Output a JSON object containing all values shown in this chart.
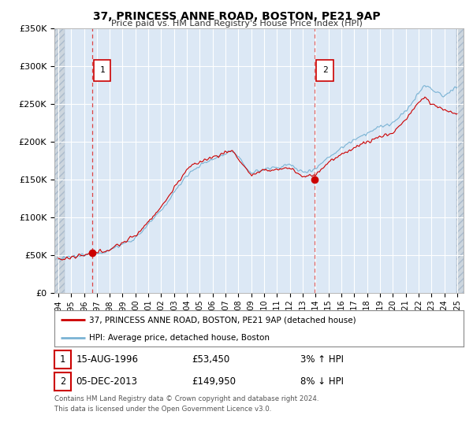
{
  "title": "37, PRINCESS ANNE ROAD, BOSTON, PE21 9AP",
  "subtitle": "Price paid vs. HM Land Registry's House Price Index (HPI)",
  "ylim": [
    0,
    350000
  ],
  "xlim_start": 1993.7,
  "xlim_end": 2025.5,
  "yticks": [
    0,
    50000,
    100000,
    150000,
    200000,
    250000,
    300000,
    350000
  ],
  "ytick_labels": [
    "£0",
    "£50K",
    "£100K",
    "£150K",
    "£200K",
    "£250K",
    "£300K",
    "£350K"
  ],
  "xticks": [
    1994,
    1995,
    1996,
    1997,
    1998,
    1999,
    2000,
    2001,
    2002,
    2003,
    2004,
    2005,
    2006,
    2007,
    2008,
    2009,
    2010,
    2011,
    2012,
    2013,
    2014,
    2015,
    2016,
    2017,
    2018,
    2019,
    2020,
    2021,
    2022,
    2023,
    2024,
    2025
  ],
  "sale1_x": 1996.62,
  "sale1_y": 53450,
  "sale2_x": 2013.92,
  "sale2_y": 149950,
  "red_line_color": "#cc0000",
  "blue_line_color": "#7ab3d4",
  "plot_bg_color": "#dce8f5",
  "hatch_bg_color": "#c8d4e0",
  "grid_color": "#ffffff",
  "legend1": "37, PRINCESS ANNE ROAD, BOSTON, PE21 9AP (detached house)",
  "legend2": "HPI: Average price, detached house, Boston",
  "label1_date": "15-AUG-1996",
  "label1_price": "£53,450",
  "label1_hpi": "3% ↑ HPI",
  "label2_date": "05-DEC-2013",
  "label2_price": "£149,950",
  "label2_hpi": "8% ↓ HPI",
  "footnote1": "Contains HM Land Registry data © Crown copyright and database right 2024.",
  "footnote2": "This data is licensed under the Open Government Licence v3.0."
}
